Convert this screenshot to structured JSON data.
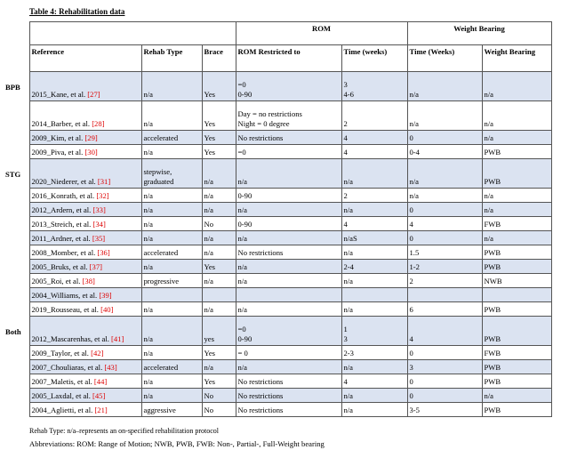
{
  "title": "Table 4: Rehabilitation data",
  "table": {
    "group_headers": [
      {
        "label": "ROM",
        "span": 2
      },
      {
        "label": "Weight Bearing",
        "span": 2
      }
    ],
    "columns": [
      "Reference",
      "Rehab Type",
      "Brace",
      "ROM Restricted  to",
      "Time (weeks)",
      "Time (Weeks)",
      "Weight Bearing"
    ],
    "groups": [
      {
        "label": "BPB",
        "rows": [
          {
            "reference": "2015_Kane, et al.",
            "citation": "[27]",
            "cells": [
              "n/a",
              "Yes",
              [
                "=0",
                "0-90"
              ],
              [
                "3",
                "4-6"
              ],
              "n/a",
              "n/a"
            ]
          },
          {
            "reference": "2014_Barber, et al.",
            "citation": "[28]",
            "cells": [
              "n/a",
              "Yes",
              [
                "Day = no restrictions",
                "Night = 0 degree"
              ],
              "2",
              "n/a",
              "n/a"
            ]
          },
          {
            "reference": "2009_Kim, et al.",
            "citation": "[29]",
            "cells": [
              "accelerated",
              "Yes",
              "No restrictions",
              "4",
              "0",
              "n/a"
            ]
          },
          {
            "reference": "2009_Piva, et al.",
            "citation": "[30]",
            "cells": [
              "n/a",
              "Yes",
              "=0",
              "4",
              "0-4",
              "PWB"
            ]
          }
        ]
      },
      {
        "label": "STG",
        "rows": [
          {
            "reference": "2020_Niederer, et al.",
            "citation": "[31]",
            "cells": [
              [
                "stepwise,",
                "graduated"
              ],
              "n/a",
              "n/a",
              "n/a",
              "n/a",
              "PWB"
            ]
          },
          {
            "reference": "2016_Konrath, et al.",
            "citation": "[32]",
            "cells": [
              "n/a",
              "n/a",
              "0-90",
              "2",
              "n/a",
              "n/a"
            ]
          },
          {
            "reference": "2012_Ardern, et al.",
            "citation": "[33]",
            "cells": [
              "n/a",
              "n/a",
              "n/a",
              "n/a",
              "0",
              "n/a"
            ]
          },
          {
            "reference": "2013_Streich, et al.",
            "citation": "[34]",
            "cells": [
              "n/a",
              "No",
              "0-90",
              "4",
              "4",
              "FWB"
            ]
          },
          {
            "reference": "2011_Ardner, et al.",
            "citation": "[35]",
            "cells": [
              "n/a",
              "n/a",
              "n/a",
              "n/aS",
              "0",
              "n/a"
            ]
          },
          {
            "reference": "2008_Momber, et al.",
            "citation": "[36]",
            "cells": [
              "accelerated",
              "n/a",
              "No restrictions",
              "n/a",
              "1.5",
              "PWB"
            ]
          },
          {
            "reference": "2005_Bruks, et al.",
            "citation": "[37]",
            "cells": [
              "n/a",
              "Yes",
              "n/a",
              "2-4",
              "1-2",
              "PWB"
            ]
          },
          {
            "reference": "2005_Roi, et al.",
            "citation": "[38]",
            "cells": [
              "progressive",
              "n/a",
              "n/a",
              "n/a",
              "2",
              "NWB"
            ]
          },
          {
            "reference": "2004_Williams, et al.",
            "citation": "[39]",
            "cells": []
          },
          {
            "reference": "2019_Rousseau, et al.",
            "citation": "[40]",
            "cells": [
              "n/a",
              "n/a",
              "n/a",
              "n/a",
              "6",
              "PWB"
            ]
          }
        ]
      },
      {
        "label": "Both",
        "rows": [
          {
            "reference": "2012_Mascarenhas, et al.",
            "citation": "[41]",
            "cells": [
              "n/a",
              "yes",
              [
                "=0",
                "0-90"
              ],
              [
                "1",
                "3"
              ],
              "4",
              "PWB"
            ]
          },
          {
            "reference": "2009_Taylor, et al.",
            "citation": "[42]",
            "cells": [
              "n/a",
              "Yes",
              "= 0",
              "2-3",
              "0",
              "FWB"
            ]
          },
          {
            "reference": "2007_Chouliaras, et al.",
            "citation": "[43]",
            "cells": [
              "accelerated",
              "n/a",
              "n/a",
              "n/a",
              "3",
              "PWB"
            ]
          },
          {
            "reference": "2007_Maletis, et al.",
            "citation": "[44]",
            "cells": [
              "n/a",
              "Yes",
              "No restrictions",
              "4",
              "0",
              "PWB"
            ]
          },
          {
            "reference": "2005_Laxdal, et al.",
            "citation": "[45]",
            "cells": [
              "n/a",
              "No",
              "No restrictions",
              "n/a",
              "0",
              "n/a"
            ]
          },
          {
            "reference": "2004_Aglietti, et al.",
            "citation": "[21]",
            "cells": [
              "aggressive",
              "No",
              "No restrictions",
              "n/a",
              "3-5",
              "PWB"
            ]
          }
        ]
      }
    ]
  },
  "footnotes": [
    "Rehab Type: n/a–represents an on-specified rehabilitation protocol",
    "Abbreviations: ROM: Range of Motion; NWB, PWB, FWB: Non-, Partial-, Full-Weight bearing"
  ]
}
